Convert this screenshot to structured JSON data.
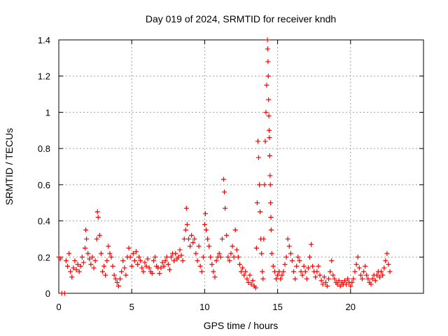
{
  "chart_data": {
    "type": "scatter",
    "title": "Day 019 of 2024, SRMTID for receiver kndh",
    "xlabel": "GPS time / hours",
    "ylabel": "SRMTID / TECUs",
    "xlim": [
      0,
      25
    ],
    "ylim": [
      0,
      1.4
    ],
    "xticks": [
      0,
      5,
      10,
      15,
      20
    ],
    "xtick_labels": [
      "0",
      "5",
      "10",
      "15",
      "20"
    ],
    "yticks": [
      0,
      0.2,
      0.4,
      0.6,
      0.8,
      1.0,
      1.2,
      1.4
    ],
    "ytick_labels": [
      "0",
      "0.2",
      "0.4",
      "0.6",
      "0.8",
      "1",
      "1.2",
      "1.4"
    ],
    "grid": true,
    "marker": "+",
    "series_color": "#ff0000",
    "series": [
      {
        "name": "SRMTID",
        "points": [
          [
            0.0,
            0.2
          ],
          [
            0.1,
            0.19
          ],
          [
            0.2,
            0.0
          ],
          [
            0.4,
            0.0
          ],
          [
            0.5,
            0.18
          ],
          [
            0.6,
            0.15
          ],
          [
            0.7,
            0.22
          ],
          [
            0.8,
            0.12
          ],
          [
            0.9,
            0.09
          ],
          [
            1.0,
            0.14
          ],
          [
            1.1,
            0.18
          ],
          [
            1.2,
            0.13
          ],
          [
            1.3,
            0.16
          ],
          [
            1.4,
            0.12
          ],
          [
            1.5,
            0.15
          ],
          [
            1.6,
            0.2
          ],
          [
            1.7,
            0.17
          ],
          [
            1.8,
            0.25
          ],
          [
            1.85,
            0.35
          ],
          [
            1.9,
            0.3
          ],
          [
            2.0,
            0.22
          ],
          [
            2.1,
            0.19
          ],
          [
            2.2,
            0.16
          ],
          [
            2.3,
            0.2
          ],
          [
            2.4,
            0.14
          ],
          [
            2.5,
            0.18
          ],
          [
            2.6,
            0.3
          ],
          [
            2.65,
            0.45
          ],
          [
            2.7,
            0.42
          ],
          [
            2.8,
            0.32
          ],
          [
            2.9,
            0.22
          ],
          [
            3.0,
            0.12
          ],
          [
            3.1,
            0.15
          ],
          [
            3.2,
            0.1
          ],
          [
            3.3,
            0.18
          ],
          [
            3.4,
            0.26
          ],
          [
            3.5,
            0.22
          ],
          [
            3.6,
            0.2
          ],
          [
            3.7,
            0.15
          ],
          [
            3.8,
            0.1
          ],
          [
            3.9,
            0.08
          ],
          [
            4.0,
            0.06
          ],
          [
            4.1,
            0.04
          ],
          [
            4.2,
            0.08
          ],
          [
            4.3,
            0.12
          ],
          [
            4.4,
            0.18
          ],
          [
            4.5,
            0.14
          ],
          [
            4.6,
            0.1
          ],
          [
            4.7,
            0.2
          ],
          [
            4.8,
            0.25
          ],
          [
            4.9,
            0.2
          ],
          [
            5.0,
            0.15
          ],
          [
            5.1,
            0.22
          ],
          [
            5.2,
            0.18
          ],
          [
            5.3,
            0.23
          ],
          [
            5.4,
            0.16
          ],
          [
            5.5,
            0.2
          ],
          [
            5.6,
            0.18
          ],
          [
            5.7,
            0.14
          ],
          [
            5.8,
            0.12
          ],
          [
            5.9,
            0.17
          ],
          [
            6.0,
            0.15
          ],
          [
            6.1,
            0.19
          ],
          [
            6.2,
            0.14
          ],
          [
            6.3,
            0.12
          ],
          [
            6.4,
            0.11
          ],
          [
            6.5,
            0.18
          ],
          [
            6.6,
            0.2
          ],
          [
            6.7,
            0.15
          ],
          [
            6.8,
            0.14
          ],
          [
            6.9,
            0.11
          ],
          [
            7.0,
            0.14
          ],
          [
            7.1,
            0.17
          ],
          [
            7.2,
            0.15
          ],
          [
            7.3,
            0.18
          ],
          [
            7.4,
            0.2
          ],
          [
            7.5,
            0.16
          ],
          [
            7.6,
            0.13
          ],
          [
            7.7,
            0.2
          ],
          [
            7.8,
            0.22
          ],
          [
            7.9,
            0.18
          ],
          [
            8.0,
            0.22
          ],
          [
            8.1,
            0.19
          ],
          [
            8.2,
            0.2
          ],
          [
            8.3,
            0.24
          ],
          [
            8.4,
            0.21
          ],
          [
            8.5,
            0.18
          ],
          [
            8.6,
            0.3
          ],
          [
            8.7,
            0.35
          ],
          [
            8.75,
            0.47
          ],
          [
            8.8,
            0.38
          ],
          [
            8.9,
            0.3
          ],
          [
            9.0,
            0.26
          ],
          [
            9.1,
            0.32
          ],
          [
            9.2,
            0.28
          ],
          [
            9.3,
            0.3
          ],
          [
            9.4,
            0.22
          ],
          [
            9.5,
            0.18
          ],
          [
            9.6,
            0.26
          ],
          [
            9.7,
            0.15
          ],
          [
            9.8,
            0.12
          ],
          [
            9.9,
            0.2
          ],
          [
            10.0,
            0.38
          ],
          [
            10.05,
            0.44
          ],
          [
            10.1,
            0.35
          ],
          [
            10.2,
            0.3
          ],
          [
            10.3,
            0.26
          ],
          [
            10.4,
            0.2
          ],
          [
            10.5,
            0.16
          ],
          [
            10.6,
            0.12
          ],
          [
            10.7,
            0.09
          ],
          [
            10.8,
            0.18
          ],
          [
            10.9,
            0.2
          ],
          [
            11.0,
            0.22
          ],
          [
            11.1,
            0.2
          ],
          [
            11.2,
            0.3
          ],
          [
            11.3,
            0.63
          ],
          [
            11.35,
            0.56
          ],
          [
            11.4,
            0.47
          ],
          [
            11.5,
            0.32
          ],
          [
            11.6,
            0.2
          ],
          [
            11.7,
            0.18
          ],
          [
            11.8,
            0.22
          ],
          [
            11.9,
            0.26
          ],
          [
            12.0,
            0.2
          ],
          [
            12.1,
            0.35
          ],
          [
            12.2,
            0.24
          ],
          [
            12.3,
            0.2
          ],
          [
            12.4,
            0.16
          ],
          [
            12.5,
            0.12
          ],
          [
            12.6,
            0.14
          ],
          [
            12.7,
            0.1
          ],
          [
            12.8,
            0.12
          ],
          [
            12.9,
            0.08
          ],
          [
            13.0,
            0.06
          ],
          [
            13.1,
            0.1
          ],
          [
            13.2,
            0.05
          ],
          [
            13.3,
            0.07
          ],
          [
            13.4,
            0.04
          ],
          [
            13.5,
            0.03
          ],
          [
            13.55,
            0.25
          ],
          [
            13.6,
            0.5
          ],
          [
            13.65,
            0.84
          ],
          [
            13.7,
            0.75
          ],
          [
            13.75,
            0.6
          ],
          [
            13.8,
            0.45
          ],
          [
            13.85,
            0.3
          ],
          [
            13.9,
            0.22
          ],
          [
            13.95,
            0.12
          ],
          [
            14.0,
            0.08
          ],
          [
            14.05,
            0.3
          ],
          [
            14.1,
            0.6
          ],
          [
            14.15,
            0.84
          ],
          [
            14.2,
            1.0
          ],
          [
            14.25,
            1.15
          ],
          [
            14.3,
            1.4
          ],
          [
            14.32,
            1.35
          ],
          [
            14.34,
            1.28
          ],
          [
            14.36,
            1.2
          ],
          [
            14.38,
            1.07
          ],
          [
            14.4,
            0.98
          ],
          [
            14.42,
            0.9
          ],
          [
            14.44,
            0.86
          ],
          [
            14.46,
            0.76
          ],
          [
            14.48,
            0.65
          ],
          [
            14.5,
            0.6
          ],
          [
            14.52,
            0.5
          ],
          [
            14.54,
            0.42
          ],
          [
            14.56,
            0.35
          ],
          [
            14.6,
            0.22
          ],
          [
            14.7,
            0.15
          ],
          [
            14.8,
            0.12
          ],
          [
            14.9,
            0.08
          ],
          [
            15.0,
            0.1
          ],
          [
            15.1,
            0.12
          ],
          [
            15.2,
            0.08
          ],
          [
            15.3,
            0.1
          ],
          [
            15.4,
            0.12
          ],
          [
            15.5,
            0.16
          ],
          [
            15.6,
            0.2
          ],
          [
            15.7,
            0.3
          ],
          [
            15.8,
            0.26
          ],
          [
            15.9,
            0.22
          ],
          [
            16.0,
            0.18
          ],
          [
            16.1,
            0.12
          ],
          [
            16.2,
            0.08
          ],
          [
            16.3,
            0.15
          ],
          [
            16.4,
            0.2
          ],
          [
            16.5,
            0.18
          ],
          [
            16.6,
            0.12
          ],
          [
            16.7,
            0.1
          ],
          [
            16.8,
            0.15
          ],
          [
            16.9,
            0.12
          ],
          [
            17.0,
            0.08
          ],
          [
            17.1,
            0.14
          ],
          [
            17.2,
            0.2
          ],
          [
            17.3,
            0.27
          ],
          [
            17.4,
            0.15
          ],
          [
            17.5,
            0.12
          ],
          [
            17.6,
            0.09
          ],
          [
            17.7,
            0.12
          ],
          [
            17.8,
            0.15
          ],
          [
            17.9,
            0.1
          ],
          [
            18.0,
            0.07
          ],
          [
            18.1,
            0.05
          ],
          [
            18.2,
            0.09
          ],
          [
            18.3,
            0.06
          ],
          [
            18.4,
            0.04
          ],
          [
            18.5,
            0.08
          ],
          [
            18.6,
            0.12
          ],
          [
            18.7,
            0.18
          ],
          [
            18.8,
            0.1
          ],
          [
            18.9,
            0.08
          ],
          [
            19.0,
            0.06
          ],
          [
            19.1,
            0.05
          ],
          [
            19.2,
            0.07
          ],
          [
            19.3,
            0.04
          ],
          [
            19.4,
            0.06
          ],
          [
            19.5,
            0.05
          ],
          [
            19.6,
            0.07
          ],
          [
            19.7,
            0.05
          ],
          [
            19.8,
            0.08
          ],
          [
            19.9,
            0.06
          ],
          [
            20.0,
            0.04
          ],
          [
            20.1,
            0.06
          ],
          [
            20.2,
            0.08
          ],
          [
            20.3,
            0.12
          ],
          [
            20.4,
            0.16
          ],
          [
            20.5,
            0.2
          ],
          [
            20.6,
            0.14
          ],
          [
            20.7,
            0.1
          ],
          [
            20.8,
            0.08
          ],
          [
            20.9,
            0.12
          ],
          [
            21.0,
            0.15
          ],
          [
            21.1,
            0.1
          ],
          [
            21.2,
            0.08
          ],
          [
            21.3,
            0.06
          ],
          [
            21.4,
            0.05
          ],
          [
            21.5,
            0.08
          ],
          [
            21.6,
            0.1
          ],
          [
            21.7,
            0.07
          ],
          [
            21.8,
            0.1
          ],
          [
            21.9,
            0.12
          ],
          [
            22.0,
            0.09
          ],
          [
            22.1,
            0.12
          ],
          [
            22.2,
            0.1
          ],
          [
            22.3,
            0.14
          ],
          [
            22.4,
            0.18
          ],
          [
            22.5,
            0.22
          ],
          [
            22.6,
            0.16
          ],
          [
            22.7,
            0.12
          ]
        ]
      }
    ]
  }
}
